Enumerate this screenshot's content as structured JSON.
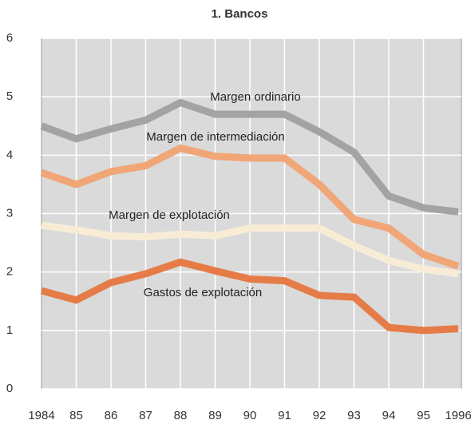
{
  "chart_data": {
    "type": "line",
    "title": "1. Bancos",
    "categories": [
      "1984",
      "85",
      "86",
      "87",
      "88",
      "89",
      "90",
      "91",
      "92",
      "93",
      "94",
      "95",
      "1996"
    ],
    "series": [
      {
        "name": "Margen ordinario",
        "color": "#a3a3a3",
        "values": [
          4.5,
          4.28,
          4.45,
          4.6,
          4.9,
          4.7,
          4.7,
          4.7,
          4.4,
          4.05,
          3.3,
          3.1,
          3.03
        ]
      },
      {
        "name": "Margen de intermediación",
        "color": "#f0a677",
        "values": [
          3.7,
          3.5,
          3.72,
          3.82,
          4.12,
          3.98,
          3.95,
          3.95,
          3.5,
          2.9,
          2.75,
          2.3,
          2.1
        ]
      },
      {
        "name": "Margen de explotación",
        "color": "#f8ecd6",
        "values": [
          2.8,
          2.72,
          2.62,
          2.6,
          2.65,
          2.62,
          2.75,
          2.75,
          2.75,
          2.45,
          2.2,
          2.05,
          1.97
        ]
      },
      {
        "name": "Gastos de explotación",
        "color": "#e57c47",
        "values": [
          1.68,
          1.52,
          1.82,
          1.97,
          2.17,
          2.02,
          1.88,
          1.85,
          1.6,
          1.57,
          1.05,
          1.0,
          1.03
        ]
      }
    ],
    "ylim": [
      0,
      6
    ],
    "yticks": [
      0,
      1,
      2,
      3,
      4,
      5,
      6
    ],
    "grid": true
  }
}
